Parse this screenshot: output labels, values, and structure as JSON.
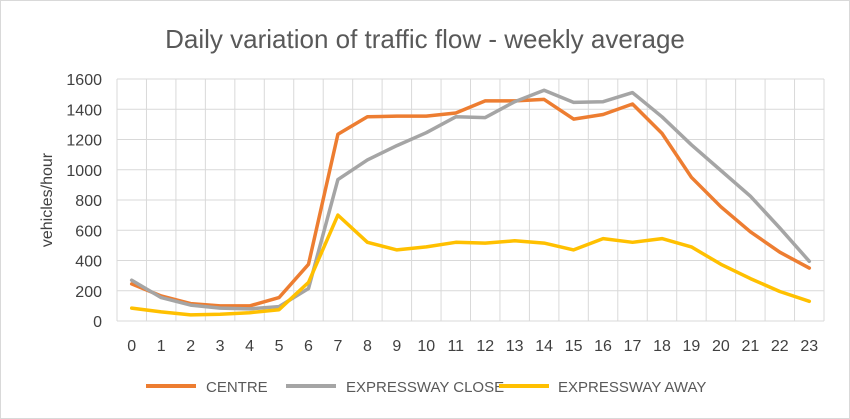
{
  "chart_data": {
    "type": "line",
    "title": "Daily variation of traffic flow - weekly average",
    "xlabel": "",
    "ylabel": "vehicles/hour",
    "x": [
      0,
      1,
      2,
      3,
      4,
      5,
      6,
      7,
      8,
      9,
      10,
      11,
      12,
      13,
      14,
      15,
      16,
      17,
      18,
      19,
      20,
      21,
      22,
      23
    ],
    "ylim": [
      0,
      1600
    ],
    "yticks": [
      0,
      200,
      400,
      600,
      800,
      1000,
      1200,
      1400,
      1600
    ],
    "grid": true,
    "legend_position": "bottom",
    "series": [
      {
        "name": "CENTRE",
        "color": "#ED7D31",
        "values": [
          245,
          165,
          115,
          100,
          100,
          155,
          375,
          1235,
          1350,
          1355,
          1355,
          1375,
          1455,
          1455,
          1465,
          1335,
          1365,
          1435,
          1240,
          950,
          755,
          590,
          455,
          350
        ]
      },
      {
        "name": "EXPRESSWAY CLOSE",
        "color": "#A5A5A5",
        "values": [
          270,
          155,
          105,
          85,
          80,
          95,
          215,
          935,
          1065,
          1160,
          1245,
          1350,
          1345,
          1450,
          1525,
          1445,
          1450,
          1510,
          1350,
          1165,
          995,
          825,
          615,
          395
        ]
      },
      {
        "name": "EXPRESSWAY AWAY",
        "color": "#FFC000",
        "values": [
          85,
          60,
          40,
          45,
          55,
          75,
          255,
          700,
          520,
          470,
          490,
          520,
          515,
          530,
          515,
          470,
          545,
          520,
          545,
          490,
          375,
          280,
          195,
          130
        ]
      }
    ]
  }
}
